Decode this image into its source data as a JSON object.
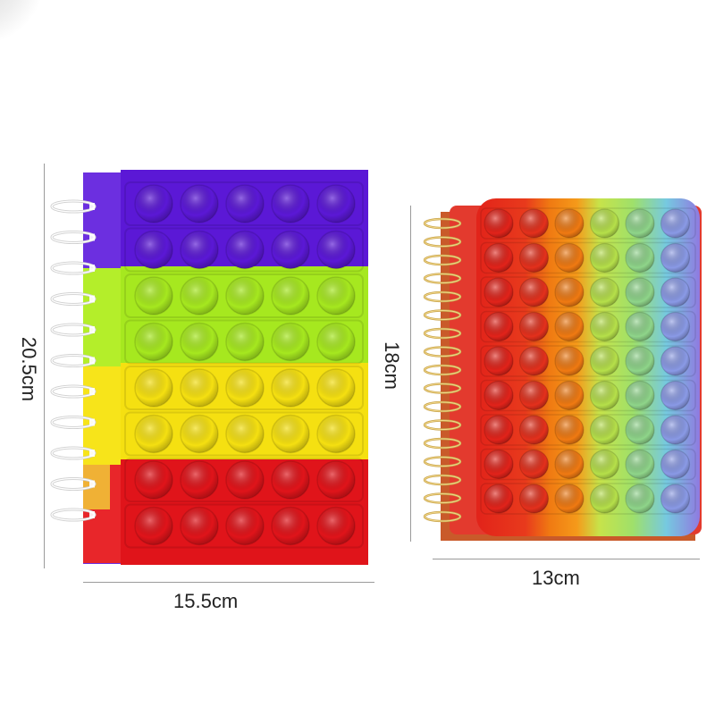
{
  "image": {
    "background": "#ffffff",
    "subjects": [
      {
        "name": "large-rainbow-notebook",
        "stripe_colors": [
          "#5b18d6",
          "#a6e81f",
          "#f5e011",
          "#e0141a"
        ],
        "rows": 8,
        "bubbles_per_row": 5,
        "binding": "white-spiral"
      },
      {
        "name": "small-tie-dye-notebook",
        "column_colors": [
          "#e2231a",
          "#f07a12",
          "#a8df4c",
          "#57b7e8"
        ],
        "rows": 9,
        "bubbles_per_row": 6,
        "binding": "gold-spiral"
      }
    ]
  },
  "dimensions": {
    "large_height": "20.5cm",
    "large_width": "15.5cm",
    "small_height": "18cm",
    "small_width": "13cm"
  }
}
